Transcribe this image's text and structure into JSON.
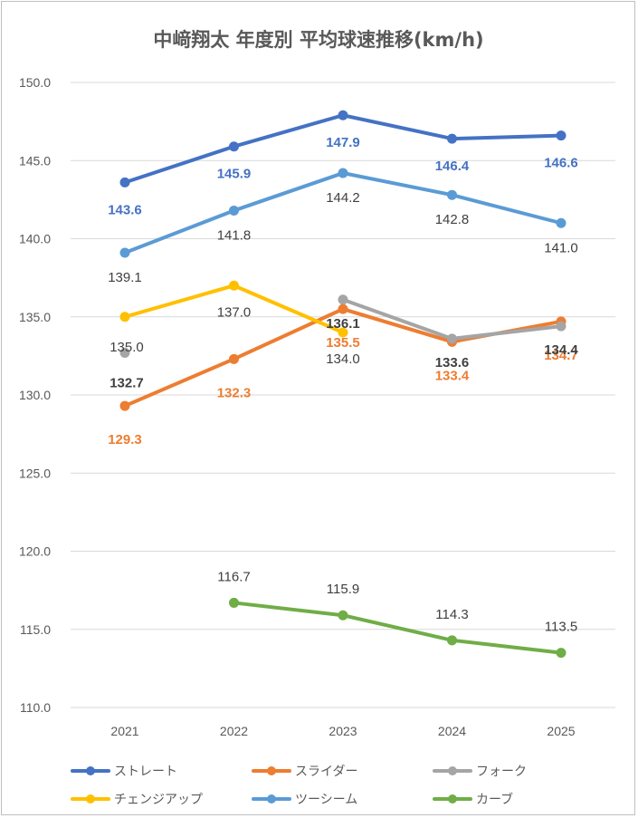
{
  "chart_data": {
    "type": "line",
    "title": "中﨑翔太 年度別 平均球速推移(km/h)",
    "categories": [
      "2021",
      "2022",
      "2023",
      "2024",
      "2025"
    ],
    "ylim": [
      110.0,
      150.0
    ],
    "yticks": [
      "110.0",
      "115.0",
      "120.0",
      "125.0",
      "130.0",
      "135.0",
      "140.0",
      "145.0",
      "150.0"
    ],
    "grid": true,
    "legend_position": "bottom",
    "series": [
      {
        "name": "ストレート",
        "color": "#4472C4",
        "values": [
          143.6,
          145.9,
          147.9,
          146.4,
          146.6
        ],
        "labels": [
          "143.6",
          "145.9",
          "147.9",
          "146.4",
          "146.6"
        ]
      },
      {
        "name": "スライダー",
        "color": "#ED7D31",
        "values": [
          129.3,
          132.3,
          135.5,
          133.4,
          134.7
        ],
        "labels": [
          "129.3",
          "132.3",
          "135.5",
          "133.4",
          "134.7"
        ]
      },
      {
        "name": "フォーク",
        "color": "#A5A5A5",
        "values": [
          132.7,
          null,
          136.1,
          133.6,
          134.4
        ],
        "labels": [
          "132.7",
          null,
          "136.1",
          "133.6",
          "134.4"
        ]
      },
      {
        "name": "チェンジアップ",
        "color": "#FFC000",
        "values": [
          135.0,
          137.0,
          134.0,
          null,
          null
        ],
        "labels": [
          "135.0",
          "137.0",
          "134.0",
          null,
          null
        ]
      },
      {
        "name": "ツーシーム",
        "color": "#5B9BD5",
        "values": [
          139.1,
          141.8,
          144.2,
          142.8,
          141.0
        ],
        "labels": [
          "139.1",
          "141.8",
          "144.2",
          "142.8",
          "141.0"
        ]
      },
      {
        "name": "カーブ",
        "color": "#70AD47",
        "values": [
          null,
          116.7,
          115.9,
          114.3,
          113.5
        ],
        "labels": [
          null,
          "116.7",
          "115.9",
          "114.3",
          "113.5"
        ]
      }
    ]
  }
}
